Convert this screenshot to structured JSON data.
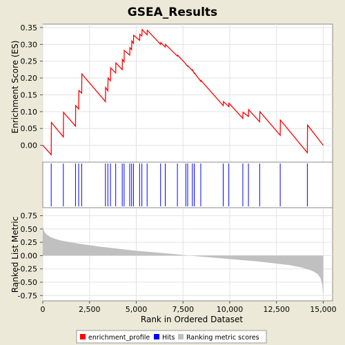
{
  "chart_data": [
    {
      "type": "line",
      "title": "GSEA_Results",
      "ylabel": "Enrichment Score (ES)",
      "xlim": [
        0,
        15500
      ],
      "ylim": [
        -0.05,
        0.36
      ],
      "y_ticks": [
        0.0,
        0.05,
        0.1,
        0.15,
        0.2,
        0.25,
        0.3,
        0.35
      ],
      "y_tick_labels": [
        "0.00",
        "0.05",
        "0.10",
        "0.15",
        "0.20",
        "0.25",
        "0.30",
        "0.35"
      ],
      "grid": true,
      "series": [
        {
          "name": "enrichment_profile",
          "color": "#ff0000",
          "x": [
            0,
            450,
            460,
            1100,
            1110,
            1750,
            1760,
            1920,
            1930,
            2080,
            2090,
            3350,
            3360,
            3480,
            3490,
            3620,
            3630,
            3900,
            3910,
            4250,
            4260,
            4350,
            4360,
            4650,
            4660,
            4750,
            4760,
            4850,
            4860,
            5180,
            5190,
            5300,
            5310,
            5580,
            5590,
            6300,
            6310,
            6550,
            6560,
            7200,
            7210,
            7650,
            7660,
            7750,
            7760,
            8000,
            8010,
            8100,
            8110,
            8450,
            8460,
            9650,
            9660,
            9950,
            9960,
            10700,
            10710,
            11000,
            11010,
            11600,
            11610,
            12700,
            12710,
            14150,
            14160,
            15000
          ],
          "y": [
            0.0,
            -0.028,
            0.068,
            0.025,
            0.098,
            0.057,
            0.118,
            0.108,
            0.163,
            0.155,
            0.212,
            0.13,
            0.172,
            0.162,
            0.2,
            0.192,
            0.23,
            0.215,
            0.245,
            0.225,
            0.255,
            0.248,
            0.282,
            0.268,
            0.29,
            0.284,
            0.31,
            0.303,
            0.327,
            0.312,
            0.33,
            0.325,
            0.344,
            0.328,
            0.342,
            0.3,
            0.305,
            0.292,
            0.3,
            0.265,
            0.268,
            0.242,
            0.24,
            0.235,
            0.236,
            0.222,
            0.224,
            0.214,
            0.215,
            0.19,
            0.193,
            0.118,
            0.13,
            0.115,
            0.125,
            0.08,
            0.098,
            0.086,
            0.106,
            0.07,
            0.1,
            0.03,
            0.075,
            -0.022,
            0.06,
            0.0
          ]
        }
      ]
    },
    {
      "type": "scatter",
      "series": [
        {
          "name": "Hits",
          "color": "#0000ff",
          "x": [
            450,
            1100,
            1750,
            1920,
            2080,
            3350,
            3480,
            3620,
            3900,
            4250,
            4350,
            4650,
            4750,
            4850,
            5180,
            5300,
            5580,
            6300,
            6550,
            7200,
            7650,
            7750,
            8000,
            8100,
            8450,
            9650,
            9950,
            10700,
            11000,
            11600,
            12700,
            14150
          ]
        }
      ]
    },
    {
      "type": "area",
      "xlabel": "Rank in Ordered Dataset",
      "ylabel": "Ranked List Metric",
      "xlim": [
        0,
        15500
      ],
      "ylim": [
        -0.85,
        0.9
      ],
      "x_ticks": [
        0,
        2500,
        5000,
        7500,
        10000,
        12500,
        15000
      ],
      "x_tick_labels": [
        "0",
        "2,500",
        "5,000",
        "7,500",
        "10,000",
        "12,500",
        "15,000"
      ],
      "y_ticks": [
        -0.75,
        -0.5,
        -0.25,
        0.0,
        0.25,
        0.5,
        0.75
      ],
      "y_tick_labels": [
        "-0.75",
        "-0.50",
        "-0.25",
        "0.00",
        "0.25",
        "0.50",
        "0.75"
      ],
      "grid": true,
      "series": [
        {
          "name": "Ranking metric scores",
          "color": "#c0c0c0",
          "x": [
            0,
            30,
            100,
            200,
            400,
            700,
            1000,
            1500,
            2000,
            3000,
            4000,
            5000,
            6000,
            7000,
            7600,
            8500,
            9500,
            10500,
            11500,
            12500,
            13200,
            13800,
            14200,
            14500,
            14700,
            14850,
            14950,
            15000
          ],
          "y": [
            0.58,
            0.5,
            0.44,
            0.4,
            0.35,
            0.31,
            0.28,
            0.25,
            0.22,
            0.17,
            0.13,
            0.09,
            0.06,
            0.03,
            0.01,
            -0.02,
            -0.05,
            -0.08,
            -0.11,
            -0.15,
            -0.18,
            -0.22,
            -0.26,
            -0.3,
            -0.35,
            -0.42,
            -0.55,
            -0.78
          ]
        }
      ]
    }
  ],
  "legend": {
    "position": "bottom",
    "items": [
      {
        "label": "enrichment_profile",
        "color": "#ff0000"
      },
      {
        "label": "Hits",
        "color": "#0000ff"
      },
      {
        "label": "Ranking metric scores",
        "color": "#c0c0c0"
      }
    ]
  }
}
